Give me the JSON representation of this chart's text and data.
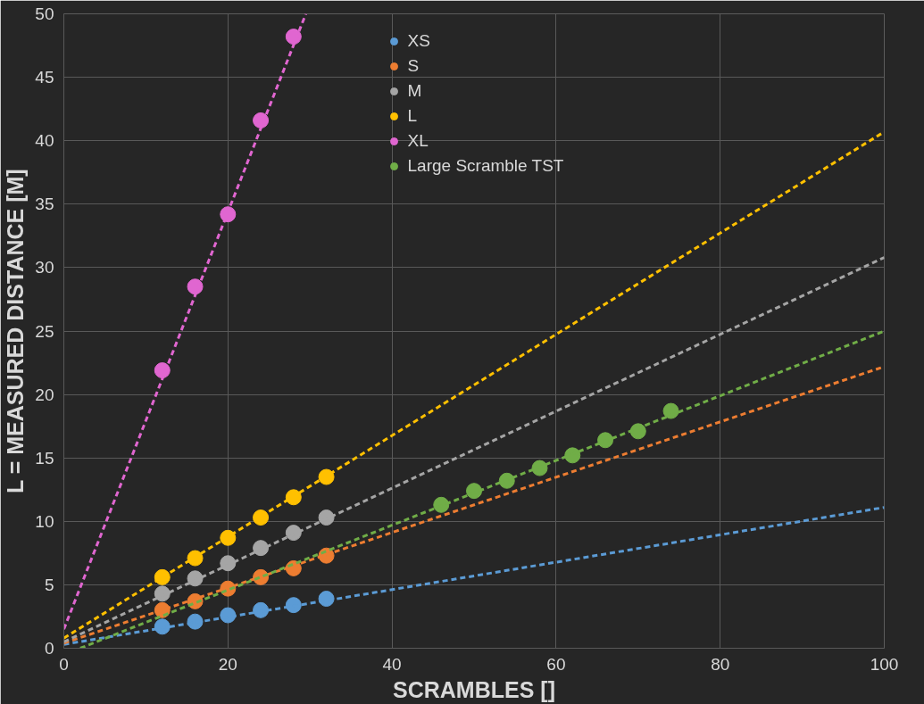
{
  "chart_data": {
    "type": "scatter",
    "xlabel": "SCRAMBLES []",
    "ylabel": "L = MEASURED DISTANCE [M]",
    "xlim": [
      0,
      100
    ],
    "ylim": [
      0,
      50
    ],
    "xticks": [
      0,
      20,
      40,
      60,
      80,
      100
    ],
    "yticks": [
      0,
      5,
      10,
      15,
      20,
      25,
      30,
      35,
      40,
      45,
      50
    ],
    "grid": true,
    "legend": "top",
    "marker": "circle",
    "series": [
      {
        "name": "XS",
        "color": "#5b9bd5",
        "x": [
          12,
          16,
          20,
          24,
          28,
          32
        ],
        "values": [
          1.7,
          2.1,
          2.6,
          3.0,
          3.4,
          3.9
        ]
      },
      {
        "name": "S",
        "color": "#ed7d31",
        "x": [
          12,
          16,
          20,
          24,
          28,
          32
        ],
        "values": [
          3.0,
          3.7,
          4.7,
          5.6,
          6.3,
          7.3
        ]
      },
      {
        "name": "M",
        "color": "#a5a5a5",
        "x": [
          12,
          16,
          20,
          24,
          28,
          32
        ],
        "values": [
          4.3,
          5.5,
          6.7,
          7.9,
          9.1,
          10.3
        ]
      },
      {
        "name": "L",
        "color": "#ffc000",
        "x": [
          12,
          16,
          20,
          24,
          28,
          32
        ],
        "values": [
          5.6,
          7.1,
          8.7,
          10.3,
          11.9,
          13.5
        ]
      },
      {
        "name": "XL",
        "color": "#e066d0",
        "x": [
          12,
          16,
          20,
          24,
          28
        ],
        "values": [
          21.9,
          28.5,
          34.2,
          41.6,
          48.2
        ]
      },
      {
        "name": "Large Scramble TST",
        "color": "#70ad47",
        "x": [
          46,
          50,
          54,
          58,
          62,
          66,
          70,
          74
        ],
        "values": [
          11.3,
          12.4,
          13.2,
          14.2,
          15.2,
          16.4,
          17.1,
          18.7
        ]
      },
      {
        "type": "line",
        "marker": "none",
        "line_style": "dashed",
        "color": "#5b9bd5",
        "x": [
          0,
          100
        ],
        "values": [
          0.3,
          11.1
        ]
      },
      {
        "type": "line",
        "marker": "none",
        "line_style": "dashed",
        "color": "#ed7d31",
        "x": [
          0,
          100
        ],
        "values": [
          0.4,
          22.2
        ]
      },
      {
        "type": "line",
        "marker": "none",
        "line_style": "dashed",
        "color": "#a5a5a5",
        "x": [
          0,
          100
        ],
        "values": [
          0.5,
          30.8
        ]
      },
      {
        "type": "line",
        "marker": "none",
        "line_style": "dashed",
        "color": "#ffc000",
        "x": [
          0,
          100
        ],
        "values": [
          0.8,
          40.7
        ]
      },
      {
        "type": "line",
        "marker": "none",
        "line_style": "dashed",
        "color": "#e066d0",
        "x": [
          0,
          29.5
        ],
        "values": [
          1.5,
          50
        ]
      },
      {
        "type": "line",
        "marker": "none",
        "line_style": "dashed",
        "color": "#70ad47",
        "x": [
          2,
          100
        ],
        "values": [
          0,
          25
        ]
      }
    ]
  }
}
